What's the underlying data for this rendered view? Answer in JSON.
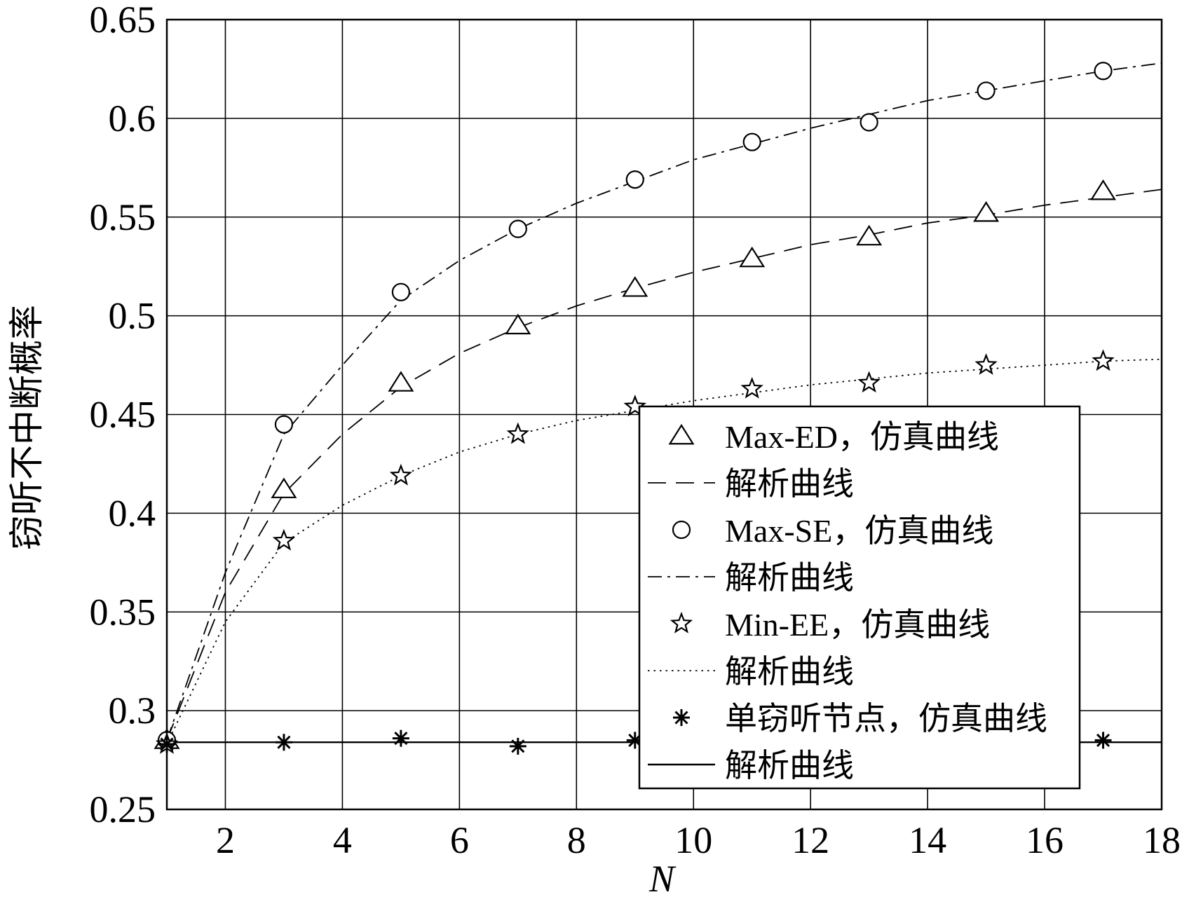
{
  "chart_data": {
    "type": "line",
    "xlabel": "N",
    "ylabel": "窃听不中断概率",
    "xlim": [
      1,
      18
    ],
    "ylim": [
      0.25,
      0.65
    ],
    "xticks": [
      2,
      4,
      6,
      8,
      10,
      12,
      14,
      16,
      18
    ],
    "xtick_labels": [
      "2",
      "4",
      "6",
      "8",
      "10",
      "12",
      "14",
      "16",
      "18"
    ],
    "yticks": [
      0.25,
      0.3,
      0.35,
      0.4,
      0.45,
      0.5,
      0.55,
      0.6,
      0.65
    ],
    "ytick_labels": [
      "0.25",
      "0.3",
      "0.35",
      "0.4",
      "0.45",
      "0.5",
      "0.55",
      "0.6",
      "0.65"
    ],
    "grid": true,
    "legend_position": "lower-right",
    "series": [
      {
        "name": "Max-ED，仿真曲线",
        "marker": "triangle",
        "x": [
          1,
          3,
          5,
          7,
          9,
          11,
          13,
          15,
          17
        ],
        "y": [
          0.285,
          0.412,
          0.466,
          0.495,
          0.514,
          0.529,
          0.54,
          0.552,
          0.563
        ]
      },
      {
        "name": "解析曲线",
        "line": "dashed",
        "x": [
          1,
          2,
          3,
          4,
          5,
          6,
          7,
          8,
          9,
          10,
          11,
          12,
          13,
          14,
          15,
          16,
          17,
          18
        ],
        "y": [
          0.285,
          0.36,
          0.41,
          0.44,
          0.464,
          0.481,
          0.494,
          0.505,
          0.514,
          0.522,
          0.529,
          0.536,
          0.541,
          0.547,
          0.551,
          0.556,
          0.56,
          0.564
        ]
      },
      {
        "name": "Max-SE，仿真曲线",
        "marker": "circle",
        "x": [
          1,
          3,
          5,
          7,
          9,
          11,
          13,
          15,
          17
        ],
        "y": [
          0.285,
          0.445,
          0.512,
          0.544,
          0.569,
          0.588,
          0.598,
          0.614,
          0.624
        ]
      },
      {
        "name": "解析曲线",
        "line": "dashdot",
        "x": [
          1,
          2,
          3,
          4,
          5,
          6,
          7,
          8,
          9,
          10,
          11,
          12,
          13,
          14,
          15,
          16,
          17,
          18
        ],
        "y": [
          0.285,
          0.37,
          0.44,
          0.475,
          0.508,
          0.528,
          0.544,
          0.557,
          0.568,
          0.579,
          0.587,
          0.595,
          0.602,
          0.609,
          0.614,
          0.619,
          0.624,
          0.628
        ]
      },
      {
        "name": "Min-EE，仿真曲线",
        "marker": "star",
        "x": [
          1,
          3,
          5,
          7,
          9,
          11,
          13,
          15,
          17
        ],
        "y": [
          0.283,
          0.386,
          0.419,
          0.44,
          0.454,
          0.463,
          0.466,
          0.475,
          0.477
        ]
      },
      {
        "name": "解析曲线",
        "line": "dotted",
        "x": [
          1,
          2,
          3,
          4,
          5,
          6,
          7,
          8,
          9,
          10,
          11,
          12,
          13,
          14,
          15,
          16,
          17,
          18
        ],
        "y": [
          0.283,
          0.345,
          0.385,
          0.404,
          0.419,
          0.431,
          0.44,
          0.447,
          0.452,
          0.457,
          0.461,
          0.465,
          0.468,
          0.471,
          0.473,
          0.475,
          0.477,
          0.478
        ]
      },
      {
        "name": "单窃听节点，仿真曲线",
        "marker": "asterisk",
        "x": [
          1,
          3,
          5,
          7,
          9,
          11,
          13,
          15,
          17
        ],
        "y": [
          0.283,
          0.284,
          0.286,
          0.282,
          0.285,
          0.284,
          0.284,
          0.285,
          0.285
        ]
      },
      {
        "name": "解析曲线",
        "line": "solid",
        "x": [
          1,
          18
        ],
        "y": [
          0.284,
          0.284
        ]
      }
    ]
  }
}
